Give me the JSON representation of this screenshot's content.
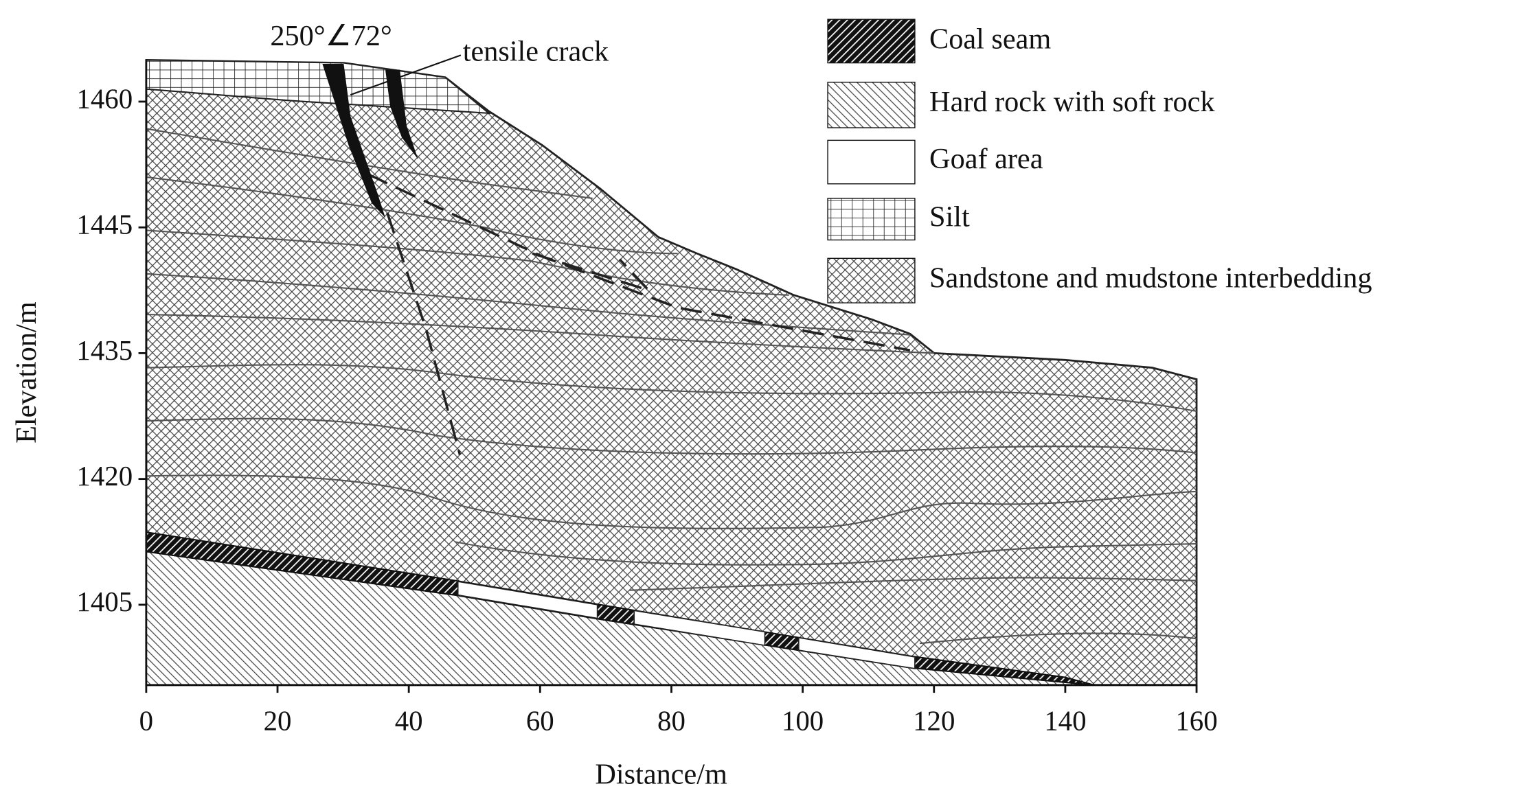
{
  "annotations": {
    "orientation": "250°∠72°",
    "crack_label": "tensile crack"
  },
  "axes": {
    "x_label": "Distance/m",
    "y_label": "Elevation/m",
    "xlim": [
      0,
      160
    ],
    "xticks": [
      0,
      20,
      40,
      60,
      80,
      100,
      120,
      140,
      160
    ],
    "yticks": [
      1460,
      1445,
      1435,
      1420,
      1405
    ]
  },
  "legend": [
    "Coal seam",
    "Hard rock with soft rock",
    "Goaf area",
    "Silt",
    "Sandstone and mudstone interbedding"
  ]
}
